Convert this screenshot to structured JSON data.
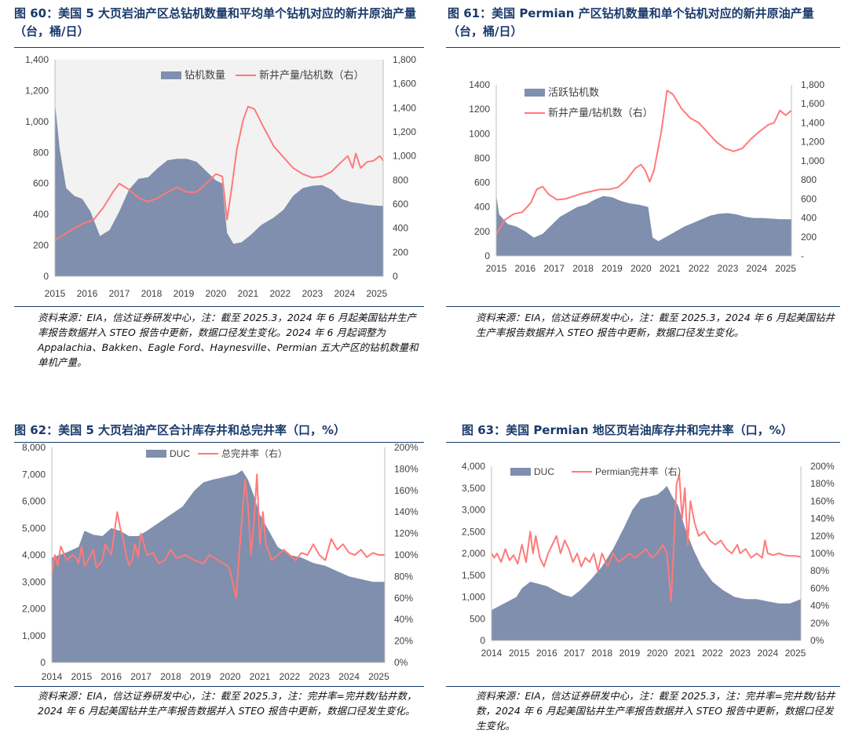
{
  "panels": [
    {
      "title": "图 60：美国 5 大页岩油产区总钻机数量和平均单个钻机对应的新井原油产量（台，桶/日）",
      "source": "资料来源：EIA，信达证券研发中心，注：截至 2025.3，2024 年 6 月起美国钻井生产率报告数据并入 STEO 报告中更新，数据口径发生变化。2024 年 6 月起调整为 Appalachia、Bakken、Eagle Ford、Haynesville、Permian 五大产区的钻机数量和单机产量。"
    },
    {
      "title": "图 61：美国 Permian 产区钻机数量和单个钻机对应的新井原油产量（台，桶/日）",
      "source": "资料来源：EIA，信达证券研发中心，注：截至 2025.3，2024 年 6 月起美国钻井生产率报告数据并入 STEO 报告中更新，数据口径发生变化。"
    },
    {
      "title": "图 62：美国 5 大页岩油产区合计库存井和总完井率（口，%）",
      "source": "资料来源：EIA，信达证券研发中心，注：截至 2025.3，注：完井率=完井数/钻井数，2024 年 6 月起美国钻井生产率报告数据并入 STEO 报告中更新，数据口径发生变化。"
    },
    {
      "title": "图 63：美国 Permian 地区页岩油库存井和完井率（口，%）",
      "source": "资料来源：EIA，信达证券研发中心，注：截至 2025.3，注：完井率=完井数/钻井数，2024 年 6 月起美国钻井生产率报告数据并入 STEO 报告中更新，数据口径发生变化。"
    }
  ],
  "colors": {
    "area": "#7f8fad",
    "line": "#ff7a7a",
    "title": "#1a3a6b"
  },
  "chart_data": [
    {
      "type": "area",
      "x_ticks": [
        "2015",
        "2016",
        "2017",
        "2018",
        "2019",
        "2020",
        "2021",
        "2022",
        "2023",
        "2024",
        "2025"
      ],
      "xlim": [
        2015,
        2025.2
      ],
      "ylim_left": [
        0,
        1400
      ],
      "yticks_left": [
        "0",
        "200",
        "400",
        "600",
        "800",
        "1,000",
        "1,200",
        "1,400"
      ],
      "ylim_right": [
        0,
        1800
      ],
      "yticks_right": [
        "0",
        "200",
        "400",
        "600",
        "800",
        "1,000",
        "1,200",
        "1,400",
        "1,600",
        "1,800"
      ],
      "legend_position": "top-right",
      "series": [
        {
          "name": "钻机数量",
          "type": "area",
          "axis": "left",
          "x": [
            2015,
            2015.15,
            2015.35,
            2015.6,
            2015.85,
            2016.1,
            2016.4,
            2016.7,
            2017.0,
            2017.3,
            2017.6,
            2017.9,
            2018.2,
            2018.5,
            2018.8,
            2019.1,
            2019.4,
            2019.7,
            2020.0,
            2020.2,
            2020.35,
            2020.55,
            2020.8,
            2021.1,
            2021.4,
            2021.8,
            2022.1,
            2022.4,
            2022.7,
            2023.0,
            2023.3,
            2023.6,
            2023.9,
            2024.2,
            2024.5,
            2024.8,
            2025.1,
            2025.2
          ],
          "y": [
            1120,
            820,
            570,
            520,
            500,
            420,
            260,
            300,
            420,
            560,
            630,
            640,
            700,
            750,
            760,
            760,
            740,
            680,
            620,
            600,
            280,
            210,
            220,
            270,
            330,
            380,
            430,
            520,
            570,
            585,
            590,
            560,
            500,
            480,
            470,
            460,
            455,
            455
          ]
        },
        {
          "name": "新井产量/钻机数（右）",
          "type": "line",
          "axis": "right",
          "x": [
            2015,
            2015.3,
            2015.6,
            2015.9,
            2016.2,
            2016.5,
            2016.8,
            2017.0,
            2017.3,
            2017.6,
            2017.9,
            2018.2,
            2018.5,
            2018.8,
            2019.1,
            2019.4,
            2019.7,
            2020.0,
            2020.2,
            2020.35,
            2020.5,
            2020.65,
            2020.85,
            2021.0,
            2021.2,
            2021.5,
            2021.8,
            2022.1,
            2022.4,
            2022.7,
            2023.0,
            2023.3,
            2023.6,
            2023.9,
            2024.1,
            2024.25,
            2024.35,
            2024.5,
            2024.7,
            2024.9,
            2025.1,
            2025.2
          ],
          "y": [
            300,
            350,
            400,
            440,
            470,
            570,
            700,
            770,
            720,
            650,
            620,
            650,
            700,
            740,
            700,
            700,
            770,
            850,
            830,
            470,
            750,
            1050,
            1300,
            1410,
            1390,
            1230,
            1080,
            990,
            900,
            850,
            820,
            830,
            870,
            950,
            1000,
            900,
            1020,
            900,
            950,
            960,
            1000,
            960
          ]
        }
      ]
    },
    {
      "type": "area",
      "x_ticks": [
        "2015",
        "2016",
        "2017",
        "2018",
        "2019",
        "2020",
        "2021",
        "2022",
        "2023",
        "2024",
        "2025"
      ],
      "xlim": [
        2015,
        2025.2
      ],
      "ylim_left": [
        0,
        1400
      ],
      "yticks_left": [
        "0",
        "200",
        "400",
        "600",
        "800",
        "1000",
        "1200",
        "1400"
      ],
      "ylim_right": [
        0,
        1800
      ],
      "yticks_right": [
        "-",
        "200",
        "400",
        "600",
        "800",
        "1,000",
        "1,200",
        "1,400",
        "1,600",
        "1,800"
      ],
      "legend_position": "top-left",
      "series": [
        {
          "name": "活跃钻机数",
          "type": "area",
          "axis": "left",
          "x": [
            2015,
            2015.1,
            2015.4,
            2015.7,
            2016.0,
            2016.3,
            2016.6,
            2016.9,
            2017.2,
            2017.5,
            2017.8,
            2018.1,
            2018.4,
            2018.7,
            2019.0,
            2019.3,
            2019.6,
            2019.9,
            2020.1,
            2020.25,
            2020.4,
            2020.6,
            2020.9,
            2021.2,
            2021.5,
            2021.8,
            2022.1,
            2022.4,
            2022.7,
            2023.0,
            2023.3,
            2023.6,
            2023.9,
            2024.2,
            2024.5,
            2024.8,
            2025.1,
            2025.2
          ],
          "y": [
            500,
            340,
            260,
            240,
            200,
            150,
            180,
            250,
            320,
            360,
            400,
            420,
            460,
            490,
            480,
            450,
            430,
            420,
            410,
            400,
            150,
            120,
            160,
            200,
            240,
            270,
            300,
            330,
            345,
            350,
            340,
            320,
            310,
            310,
            305,
            300,
            300,
            300
          ]
        },
        {
          "name": "新井产量/钻机数（右）",
          "type": "line",
          "axis": "right",
          "x": [
            2015,
            2015.3,
            2015.6,
            2015.9,
            2016.2,
            2016.4,
            2016.6,
            2016.8,
            2017.1,
            2017.4,
            2017.7,
            2018.0,
            2018.3,
            2018.6,
            2018.9,
            2019.2,
            2019.5,
            2019.8,
            2020.0,
            2020.15,
            2020.3,
            2020.45,
            2020.7,
            2020.9,
            2021.1,
            2021.4,
            2021.7,
            2022.0,
            2022.3,
            2022.6,
            2022.9,
            2023.2,
            2023.5,
            2023.8,
            2024.1,
            2024.4,
            2024.6,
            2024.8,
            2025.0,
            2025.2
          ],
          "y": [
            230,
            380,
            440,
            460,
            560,
            700,
            730,
            650,
            590,
            600,
            630,
            660,
            680,
            700,
            700,
            720,
            800,
            920,
            960,
            900,
            780,
            900,
            1300,
            1740,
            1700,
            1550,
            1450,
            1400,
            1300,
            1200,
            1130,
            1100,
            1130,
            1230,
            1310,
            1380,
            1400,
            1530,
            1480,
            1530
          ]
        }
      ]
    },
    {
      "type": "area",
      "x_ticks": [
        "2014",
        "2015",
        "2016",
        "2017",
        "2018",
        "2019",
        "2020",
        "2021",
        "2022",
        "2023",
        "2024",
        "2025"
      ],
      "xlim": [
        2014,
        2025.2
      ],
      "ylim_left": [
        0,
        8000
      ],
      "yticks_left": [
        "0",
        "1,000",
        "2,000",
        "3,000",
        "4,000",
        "5,000",
        "6,000",
        "7,000",
        "8,000"
      ],
      "ylim_right": [
        0,
        200
      ],
      "yticks_right": [
        "0%",
        "20%",
        "40%",
        "60%",
        "80%",
        "100%",
        "120%",
        "140%",
        "160%",
        "180%",
        "200%"
      ],
      "legend_position": "top-center",
      "series": [
        {
          "name": "DUC",
          "type": "area",
          "axis": "left",
          "x": [
            2014,
            2014.5,
            2014.9,
            2015.1,
            2015.4,
            2015.7,
            2016.0,
            2016.3,
            2016.6,
            2016.9,
            2017.2,
            2017.6,
            2018.0,
            2018.4,
            2018.8,
            2019.1,
            2019.4,
            2019.8,
            2020.2,
            2020.4,
            2020.6,
            2020.8,
            2021.0,
            2021.3,
            2021.6,
            2022.0,
            2022.4,
            2022.8,
            2023.2,
            2023.6,
            2024.0,
            2024.4,
            2024.8,
            2025.2
          ],
          "y": [
            3900,
            4100,
            4300,
            4900,
            4750,
            4700,
            5000,
            4900,
            4700,
            4700,
            4900,
            5200,
            5500,
            5800,
            6400,
            6700,
            6800,
            6900,
            7000,
            7150,
            6800,
            6200,
            5500,
            4900,
            4300,
            4000,
            3900,
            3700,
            3600,
            3400,
            3200,
            3100,
            3000,
            3000
          ]
        },
        {
          "name": "总完井率（右）",
          "type": "line",
          "axis": "right",
          "x": [
            2014,
            2014.1,
            2014.2,
            2014.3,
            2014.5,
            2014.7,
            2014.8,
            2014.9,
            2015.0,
            2015.1,
            2015.2,
            2015.4,
            2015.5,
            2015.7,
            2015.8,
            2016.0,
            2016.2,
            2016.3,
            2016.4,
            2016.5,
            2016.6,
            2016.7,
            2016.8,
            2016.9,
            2017.0,
            2017.2,
            2017.4,
            2017.6,
            2017.8,
            2018.0,
            2018.2,
            2018.5,
            2018.8,
            2019.1,
            2019.3,
            2019.6,
            2019.9,
            2020.0,
            2020.2,
            2020.3,
            2020.5,
            2020.6,
            2020.7,
            2020.8,
            2020.9,
            2021.0,
            2021.1,
            2021.2,
            2021.4,
            2021.6,
            2021.8,
            2022.0,
            2022.2,
            2022.4,
            2022.6,
            2022.8,
            2023.0,
            2023.2,
            2023.4,
            2023.6,
            2023.8,
            2024.0,
            2024.2,
            2024.4,
            2024.6,
            2024.8,
            2025.0,
            2025.2
          ],
          "y": [
            82,
            100,
            90,
            108,
            95,
            100,
            98,
            92,
            108,
            90,
            94,
            105,
            88,
            95,
            110,
            100,
            140,
            125,
            115,
            100,
            90,
            95,
            110,
            98,
            120,
            100,
            102,
            92,
            95,
            105,
            97,
            100,
            95,
            92,
            100,
            95,
            90,
            85,
            60,
            100,
            170,
            145,
            100,
            130,
            175,
            110,
            140,
            110,
            95,
            100,
            105,
            100,
            95,
            102,
            100,
            110,
            100,
            95,
            115,
            105,
            110,
            102,
            100,
            105,
            98,
            102,
            100,
            100
          ]
        }
      ]
    },
    {
      "type": "area",
      "x_ticks": [
        "2014",
        "2015",
        "2016",
        "2017",
        "2018",
        "2019",
        "2020",
        "2021",
        "2022",
        "2023",
        "2024",
        "2025"
      ],
      "xlim": [
        2014,
        2025.2
      ],
      "ylim_left": [
        0,
        4000
      ],
      "yticks_left": [
        "0",
        "500",
        "1,000",
        "1,500",
        "2,000",
        "2,500",
        "3,000",
        "3,500",
        "4,000"
      ],
      "ylim_right": [
        0,
        200
      ],
      "yticks_right": [
        "0%",
        "20%",
        "40%",
        "60%",
        "80%",
        "100%",
        "120%",
        "140%",
        "160%",
        "180%",
        "200%"
      ],
      "legend_position": "top-center",
      "series": [
        {
          "name": "DUC",
          "type": "area",
          "axis": "left",
          "x": [
            2014,
            2014.3,
            2014.6,
            2014.9,
            2015.1,
            2015.4,
            2015.7,
            2016.0,
            2016.3,
            2016.6,
            2016.9,
            2017.2,
            2017.6,
            2018.0,
            2018.4,
            2018.8,
            2019.1,
            2019.4,
            2019.7,
            2020.0,
            2020.2,
            2020.35,
            2020.55,
            2020.75,
            2021.0,
            2021.3,
            2021.6,
            2022.0,
            2022.4,
            2022.8,
            2023.2,
            2023.6,
            2024.0,
            2024.4,
            2024.8,
            2025.2
          ],
          "y": [
            700,
            800,
            900,
            1000,
            1200,
            1350,
            1300,
            1250,
            1150,
            1050,
            1000,
            1150,
            1400,
            1700,
            2100,
            2600,
            3000,
            3250,
            3300,
            3350,
            3450,
            3550,
            3300,
            3100,
            2600,
            2100,
            1700,
            1350,
            1150,
            1000,
            950,
            950,
            900,
            850,
            850,
            950
          ]
        },
        {
          "name": "Permian完井率（右）",
          "type": "line",
          "axis": "right",
          "x": [
            2014,
            2014.1,
            2014.2,
            2014.35,
            2014.5,
            2014.65,
            2014.8,
            2014.95,
            2015.1,
            2015.25,
            2015.4,
            2015.5,
            2015.6,
            2015.75,
            2015.9,
            2016.05,
            2016.2,
            2016.35,
            2016.5,
            2016.65,
            2016.8,
            2016.95,
            2017.1,
            2017.25,
            2017.4,
            2017.55,
            2017.7,
            2017.85,
            2018.0,
            2018.2,
            2018.4,
            2018.6,
            2018.8,
            2019.0,
            2019.2,
            2019.4,
            2019.6,
            2019.8,
            2020.0,
            2020.2,
            2020.35,
            2020.5,
            2020.6,
            2020.7,
            2020.8,
            2020.9,
            2021.0,
            2021.1,
            2021.2,
            2021.35,
            2021.5,
            2021.7,
            2021.9,
            2022.1,
            2022.3,
            2022.5,
            2022.7,
            2022.9,
            2023.0,
            2023.2,
            2023.4,
            2023.6,
            2023.8,
            2023.9,
            2024.0,
            2024.2,
            2024.4,
            2024.6,
            2024.8,
            2025.0,
            2025.2
          ],
          "y": [
            100,
            95,
            100,
            90,
            105,
            92,
            98,
            88,
            110,
            90,
            125,
            100,
            120,
            95,
            85,
            100,
            110,
            120,
            100,
            115,
            105,
            90,
            100,
            85,
            95,
            90,
            100,
            80,
            100,
            85,
            100,
            90,
            95,
            100,
            95,
            100,
            105,
            95,
            100,
            110,
            100,
            45,
            110,
            180,
            190,
            140,
            175,
            110,
            160,
            135,
            120,
            125,
            115,
            110,
            115,
            105,
            100,
            110,
            100,
            105,
            95,
            100,
            95,
            115,
            100,
            98,
            100,
            98,
            97,
            97,
            96
          ]
        }
      ]
    }
  ]
}
